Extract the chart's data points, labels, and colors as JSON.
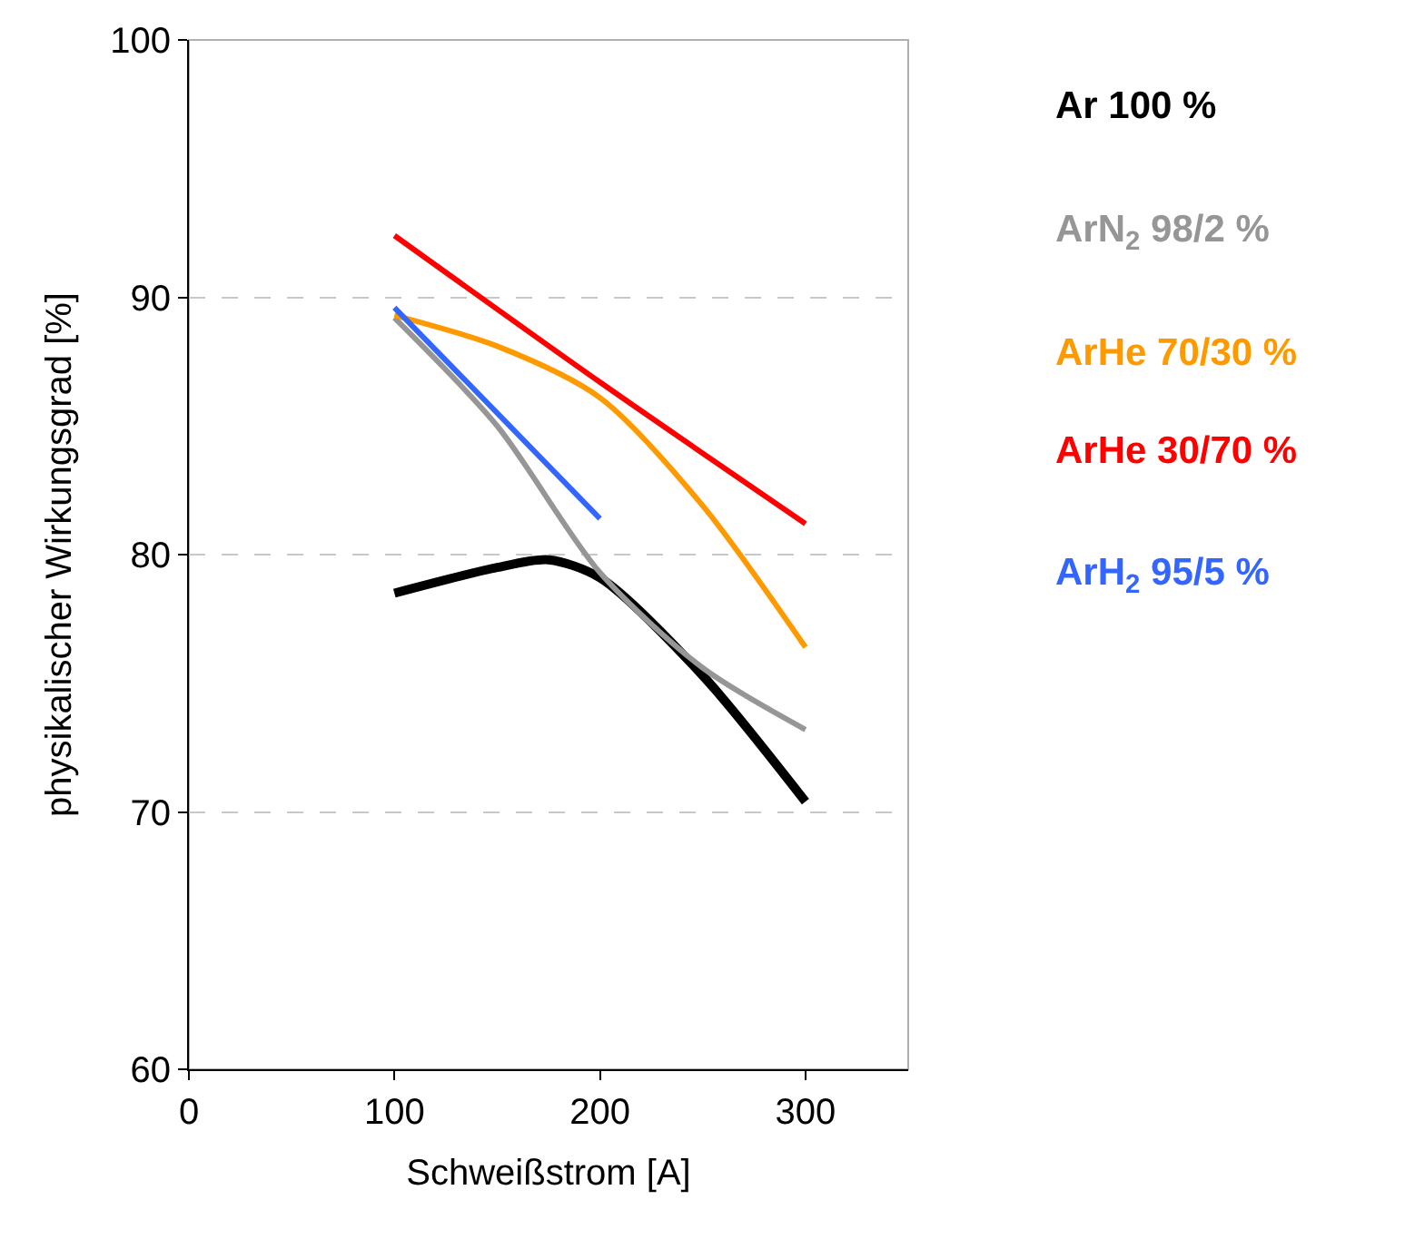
{
  "chart_data": {
    "type": "line",
    "xlabel": "Schweißstrom [A]",
    "ylabel": "physikalischer Wirkungsgrad [%]",
    "xlim": [
      0,
      350
    ],
    "xticks": [
      0,
      100,
      200,
      300
    ],
    "ylim": [
      60,
      100
    ],
    "yticks": [
      60,
      70,
      80,
      90,
      100
    ],
    "grid": "y",
    "legend": "right",
    "marker": "none",
    "line_style": "solid",
    "series": [
      {
        "name": "Ar 100 %",
        "color": "#000000",
        "x": [
          100,
          150,
          175,
          200,
          250,
          300
        ],
        "values": [
          78.5,
          79.5,
          79.8,
          79.1,
          75.3,
          70.4
        ]
      },
      {
        "name": "ArN$_{2}$ 98/2 %",
        "color": "#969696",
        "x": [
          100,
          150,
          200,
          250,
          300
        ],
        "values": [
          89.2,
          85.0,
          79.3,
          75.6,
          73.2
        ]
      },
      {
        "name": "ArHe 70/30 %",
        "color": "#ff9900",
        "x": [
          100,
          150,
          200,
          250,
          300
        ],
        "values": [
          89.3,
          88.1,
          86.1,
          81.9,
          76.4
        ]
      },
      {
        "name": "ArHe 30/70 %",
        "color": "#ff0000",
        "x": [
          100,
          200,
          300
        ],
        "values": [
          92.4,
          86.7,
          81.2
        ]
      },
      {
        "name": "ArH$_{2}$ 95/5 %",
        "color": "#3366ff",
        "x": [
          100,
          200
        ],
        "values": [
          89.6,
          81.4
        ]
      }
    ]
  }
}
